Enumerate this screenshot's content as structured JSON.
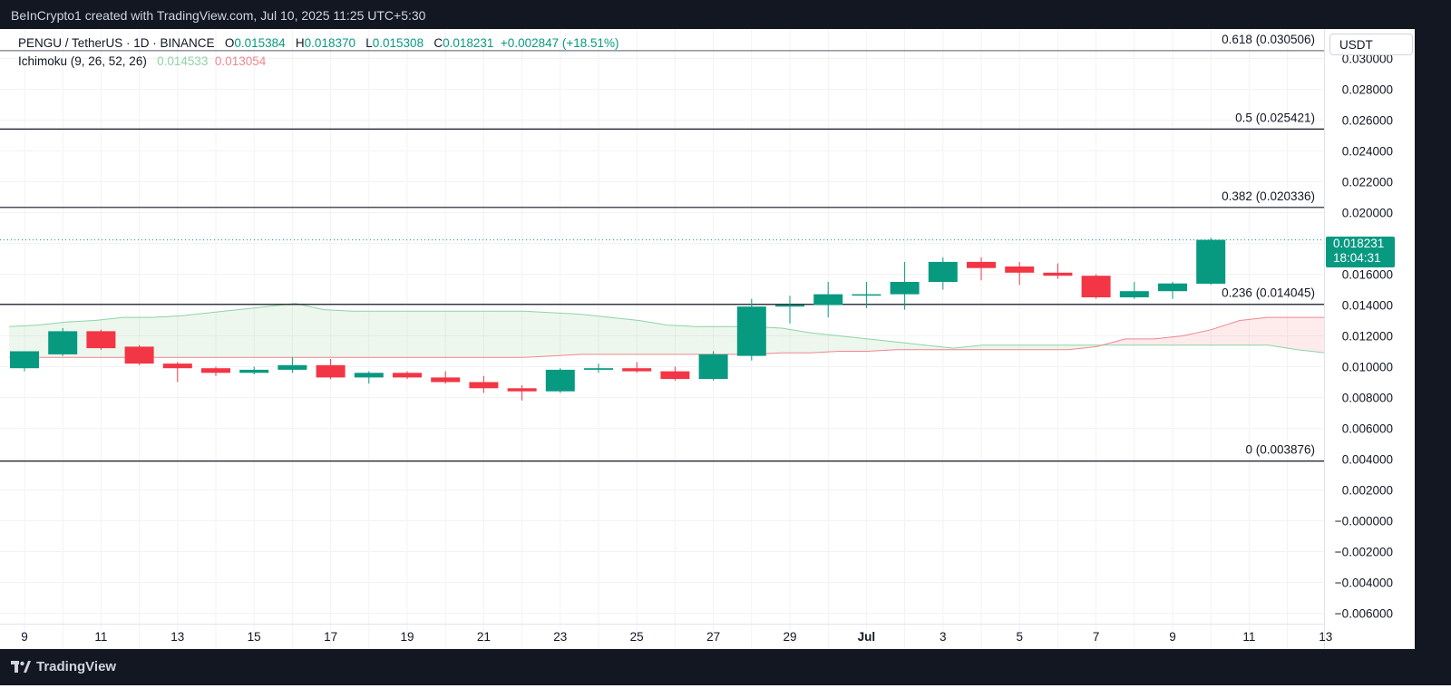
{
  "header": {
    "attribution": "BeInCrypto1 created with TradingView.com, Jul 10, 2025 11:25 UTC+5:30"
  },
  "footer": {
    "brand": "TradingView"
  },
  "legend": {
    "symbol": "PENGU / TetherUS · 1D · BINANCE",
    "o_label": "O",
    "o": "0.015384",
    "h_label": "H",
    "h": "0.018370",
    "l_label": "L",
    "l": "0.015308",
    "c_label": "C",
    "c": "0.018231",
    "change": "+0.002847 (+18.51%)",
    "indicator": "Ichimoku (9, 26, 52, 26)",
    "ind_v1": "0.014533",
    "ind_v2": "0.013054"
  },
  "currency": "USDT",
  "price_tag": {
    "price": "0.018231",
    "countdown": "18:04:31"
  },
  "colors": {
    "up": "#089981",
    "down": "#f23645",
    "spanA": "#8fd3a6",
    "spanB": "#f0868f"
  },
  "chart_data": {
    "type": "candlestick",
    "x_ticks": [
      "9",
      "11",
      "13",
      "15",
      "17",
      "19",
      "21",
      "23",
      "25",
      "27",
      "29",
      "Jul",
      "3",
      "5",
      "7",
      "9",
      "11",
      "13"
    ],
    "y_ticks": [
      "0.030000",
      "0.028000",
      "0.026000",
      "0.024000",
      "0.022000",
      "0.020000",
      "0.018000",
      "0.016000",
      "0.014000",
      "0.012000",
      "0.010000",
      "0.008000",
      "0.006000",
      "0.004000",
      "0.002000",
      "−0.000000",
      "−0.002000",
      "−0.004000",
      "−0.006000"
    ],
    "y_values": [
      0.03,
      0.028,
      0.026,
      0.024,
      0.022,
      0.02,
      0.018,
      0.016,
      0.014,
      0.012,
      0.01,
      0.008,
      0.006,
      0.004,
      0.002,
      0,
      -0.002,
      -0.004,
      -0.006
    ],
    "ylim": [
      -0.0064,
      0.0316
    ],
    "fib_levels": [
      {
        "label": "0.618 (0.030506)",
        "value": 0.030506
      },
      {
        "label": "0.5 (0.025421)",
        "value": 0.025421
      },
      {
        "label": "0.382 (0.020336)",
        "value": 0.020336
      },
      {
        "label": "0.236 (0.014045)",
        "value": 0.014045
      },
      {
        "label": "0 (0.003876)",
        "value": 0.003876
      }
    ],
    "current_price": 0.018231,
    "candles": [
      {
        "date": "Jun 9",
        "o": 0.0099,
        "h": 0.011,
        "l": 0.0097,
        "c": 0.011
      },
      {
        "date": "Jun 10",
        "o": 0.0108,
        "h": 0.0125,
        "l": 0.0107,
        "c": 0.0123
      },
      {
        "date": "Jun 11",
        "o": 0.0123,
        "h": 0.0124,
        "l": 0.0111,
        "c": 0.0112
      },
      {
        "date": "Jun 12",
        "o": 0.0113,
        "h": 0.0114,
        "l": 0.0101,
        "c": 0.0102
      },
      {
        "date": "Jun 13",
        "o": 0.0102,
        "h": 0.0103,
        "l": 0.009,
        "c": 0.0099
      },
      {
        "date": "Jun 14",
        "o": 0.0099,
        "h": 0.01,
        "l": 0.0094,
        "c": 0.0096
      },
      {
        "date": "Jun 15",
        "o": 0.0096,
        "h": 0.01,
        "l": 0.0095,
        "c": 0.0098
      },
      {
        "date": "Jun 16",
        "o": 0.0098,
        "h": 0.0106,
        "l": 0.0096,
        "c": 0.0101
      },
      {
        "date": "Jun 17",
        "o": 0.0101,
        "h": 0.0105,
        "l": 0.0092,
        "c": 0.0093
      },
      {
        "date": "Jun 18",
        "o": 0.0093,
        "h": 0.0097,
        "l": 0.0089,
        "c": 0.0096
      },
      {
        "date": "Jun 19",
        "o": 0.0096,
        "h": 0.0097,
        "l": 0.0092,
        "c": 0.0093
      },
      {
        "date": "Jun 20",
        "o": 0.0093,
        "h": 0.0097,
        "l": 0.0089,
        "c": 0.009
      },
      {
        "date": "Jun 21",
        "o": 0.009,
        "h": 0.0094,
        "l": 0.0083,
        "c": 0.0086
      },
      {
        "date": "Jun 22",
        "o": 0.0086,
        "h": 0.0088,
        "l": 0.0078,
        "c": 0.0084
      },
      {
        "date": "Jun 23",
        "o": 0.0084,
        "h": 0.0099,
        "l": 0.0083,
        "c": 0.0098
      },
      {
        "date": "Jun 24",
        "o": 0.0098,
        "h": 0.0102,
        "l": 0.0096,
        "c": 0.0099
      },
      {
        "date": "Jun 25",
        "o": 0.0099,
        "h": 0.0103,
        "l": 0.0096,
        "c": 0.0097
      },
      {
        "date": "Jun 26",
        "o": 0.0097,
        "h": 0.01,
        "l": 0.0091,
        "c": 0.0092
      },
      {
        "date": "Jun 27",
        "o": 0.0092,
        "h": 0.011,
        "l": 0.0091,
        "c": 0.0108
      },
      {
        "date": "Jun 28",
        "o": 0.0107,
        "h": 0.0144,
        "l": 0.0104,
        "c": 0.0139
      },
      {
        "date": "Jun 29",
        "o": 0.0139,
        "h": 0.0146,
        "l": 0.0128,
        "c": 0.014
      },
      {
        "date": "Jun 30",
        "o": 0.014,
        "h": 0.0155,
        "l": 0.0132,
        "c": 0.0147
      },
      {
        "date": "Jul 1",
        "o": 0.0147,
        "h": 0.0155,
        "l": 0.0138,
        "c": 0.0147
      },
      {
        "date": "Jul 2",
        "o": 0.0147,
        "h": 0.0168,
        "l": 0.0137,
        "c": 0.0155
      },
      {
        "date": "Jul 3",
        "o": 0.0155,
        "h": 0.0171,
        "l": 0.015,
        "c": 0.0168
      },
      {
        "date": "Jul 4",
        "o": 0.0168,
        "h": 0.0171,
        "l": 0.0156,
        "c": 0.0164
      },
      {
        "date": "Jul 5",
        "o": 0.0165,
        "h": 0.0168,
        "l": 0.0153,
        "c": 0.0161
      },
      {
        "date": "Jul 6",
        "o": 0.0161,
        "h": 0.0167,
        "l": 0.0157,
        "c": 0.0159
      },
      {
        "date": "Jul 7",
        "o": 0.0159,
        "h": 0.016,
        "l": 0.0144,
        "c": 0.0145
      },
      {
        "date": "Jul 8",
        "o": 0.0145,
        "h": 0.0155,
        "l": 0.0144,
        "c": 0.0149
      },
      {
        "date": "Jul 9",
        "o": 0.0149,
        "h": 0.0155,
        "l": 0.0144,
        "c": 0.0154
      },
      {
        "date": "Jul 10",
        "o": 0.015384,
        "h": 0.01837,
        "l": 0.015308,
        "c": 0.018231
      }
    ],
    "ichimoku_cloud": {
      "span_a": [
        0.0126,
        0.0127,
        0.0129,
        0.013,
        0.0132,
        0.0132,
        0.0133,
        0.0135,
        0.0137,
        0.0139,
        0.0141,
        0.0137,
        0.0136,
        0.0136,
        0.0136,
        0.0136,
        0.0136,
        0.0136,
        0.0136,
        0.0135,
        0.0134,
        0.0132,
        0.013,
        0.0127,
        0.0126,
        0.0126,
        0.0126,
        0.0125,
        0.0122,
        0.012,
        0.0118,
        0.0116,
        0.0114,
        0.0112,
        0.0114,
        0.0114,
        0.0114,
        0.0114,
        0.0114,
        0.0114,
        0.0114,
        0.0114,
        0.0114,
        0.0114,
        0.0114,
        0.0111,
        0.0109
      ],
      "span_b": [
        0.0106,
        0.0106,
        0.0106,
        0.0106,
        0.0106,
        0.0106,
        0.0106,
        0.0106,
        0.0106,
        0.0106,
        0.0106,
        0.0106,
        0.0106,
        0.0106,
        0.0106,
        0.0106,
        0.0106,
        0.0106,
        0.0106,
        0.0107,
        0.0108,
        0.0108,
        0.0108,
        0.0108,
        0.0108,
        0.0108,
        0.0108,
        0.0109,
        0.0109,
        0.011,
        0.011,
        0.0111,
        0.0111,
        0.0111,
        0.0111,
        0.0111,
        0.0111,
        0.0111,
        0.0113,
        0.0118,
        0.0118,
        0.012,
        0.0124,
        0.013,
        0.0132,
        0.0132,
        0.0132
      ]
    }
  }
}
